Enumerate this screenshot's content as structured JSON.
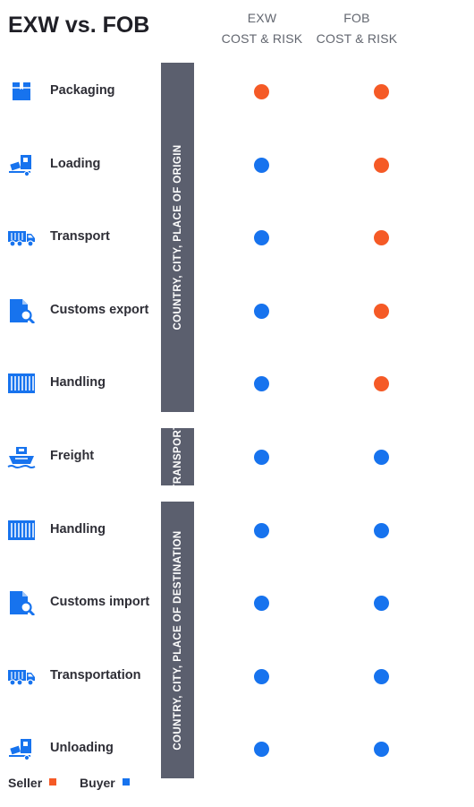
{
  "title": "EXW vs. FOB",
  "columns": [
    {
      "line1": "EXW",
      "line2": "COST & RISK"
    },
    {
      "line1": "FOB",
      "line2": "COST & RISK"
    }
  ],
  "colors": {
    "seller": "#f55a26",
    "buyer": "#1773ee",
    "icon": "#1773ee",
    "band": "#5b5f6e"
  },
  "rows": [
    {
      "label": "Packaging",
      "icon": "package-icon",
      "exw": "seller",
      "fob": "seller"
    },
    {
      "label": "Loading",
      "icon": "loading-icon",
      "exw": "buyer",
      "fob": "seller"
    },
    {
      "label": "Transport",
      "icon": "truck-icon",
      "exw": "buyer",
      "fob": "seller"
    },
    {
      "label": "Customs export",
      "icon": "customs-document-icon",
      "exw": "buyer",
      "fob": "seller"
    },
    {
      "label": "Handling",
      "icon": "container-icon",
      "exw": "buyer",
      "fob": "seller"
    },
    {
      "label": "Freight",
      "icon": "ship-icon",
      "exw": "buyer",
      "fob": "buyer"
    },
    {
      "label": "Handling",
      "icon": "container-icon",
      "exw": "buyer",
      "fob": "buyer"
    },
    {
      "label": "Customs import",
      "icon": "customs-document-icon",
      "exw": "buyer",
      "fob": "buyer"
    },
    {
      "label": "Transportation",
      "icon": "truck-icon",
      "exw": "buyer",
      "fob": "buyer"
    },
    {
      "label": "Unloading",
      "icon": "loading-icon",
      "exw": "buyer",
      "fob": "buyer"
    }
  ],
  "bands": [
    {
      "label": "COUNTRY, CITY, PLACE OF ORIGIN",
      "rows": [
        0,
        4
      ]
    },
    {
      "label": "TRANSPORT",
      "rows": [
        5,
        5
      ]
    },
    {
      "label": "COUNTRY, CITY, PLACE OF DESTINATION",
      "rows": [
        6,
        9
      ]
    }
  ],
  "legend": [
    {
      "label": "Seller",
      "party": "seller"
    },
    {
      "label": "Buyer",
      "party": "buyer"
    }
  ]
}
